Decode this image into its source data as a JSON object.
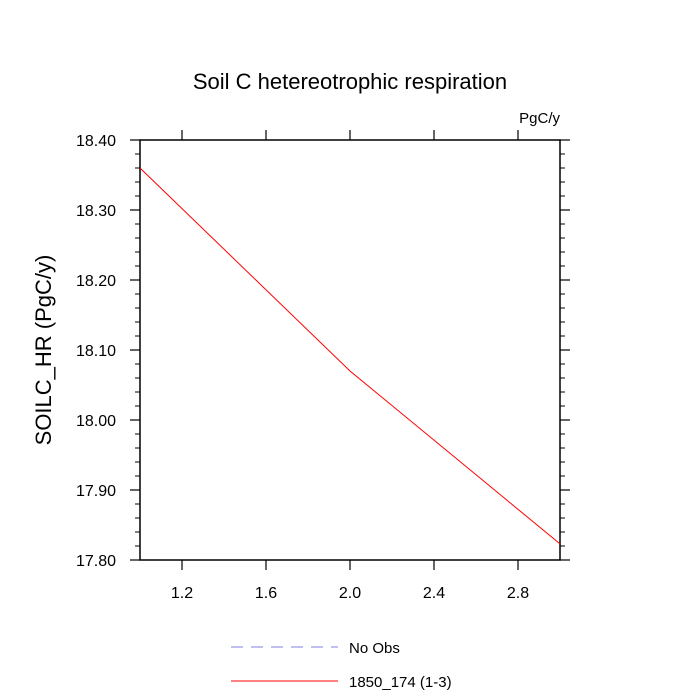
{
  "chart_data": {
    "type": "line",
    "title": "Soil C hetereotrophic respiration",
    "units_label": "PgC/y",
    "xlabel": "",
    "ylabel": "SOILC_HR  (PgC/y)",
    "xlim": [
      1.0,
      3.0
    ],
    "ylim": [
      17.8,
      18.4
    ],
    "x_ticks": [
      1.2,
      1.6,
      2.0,
      2.4,
      2.8
    ],
    "x_tick_labels": [
      "1.2",
      "1.6",
      "2.0",
      "2.4",
      "2.8"
    ],
    "y_ticks": [
      17.8,
      17.9,
      18.0,
      18.1,
      18.2,
      18.3,
      18.4
    ],
    "y_tick_labels": [
      "17.80",
      "17.90",
      "18.00",
      "18.10",
      "18.20",
      "18.30",
      "18.40"
    ],
    "series": [
      {
        "name": "No Obs",
        "style": "dashed",
        "color": "#8080e0",
        "x": [],
        "values": []
      },
      {
        "name": "1850_174 (1-3)",
        "style": "solid",
        "color": "#ff0000",
        "x": [
          1,
          2,
          3
        ],
        "values": [
          18.36,
          18.07,
          17.823
        ]
      }
    ],
    "legend_position": "bottom-center"
  }
}
